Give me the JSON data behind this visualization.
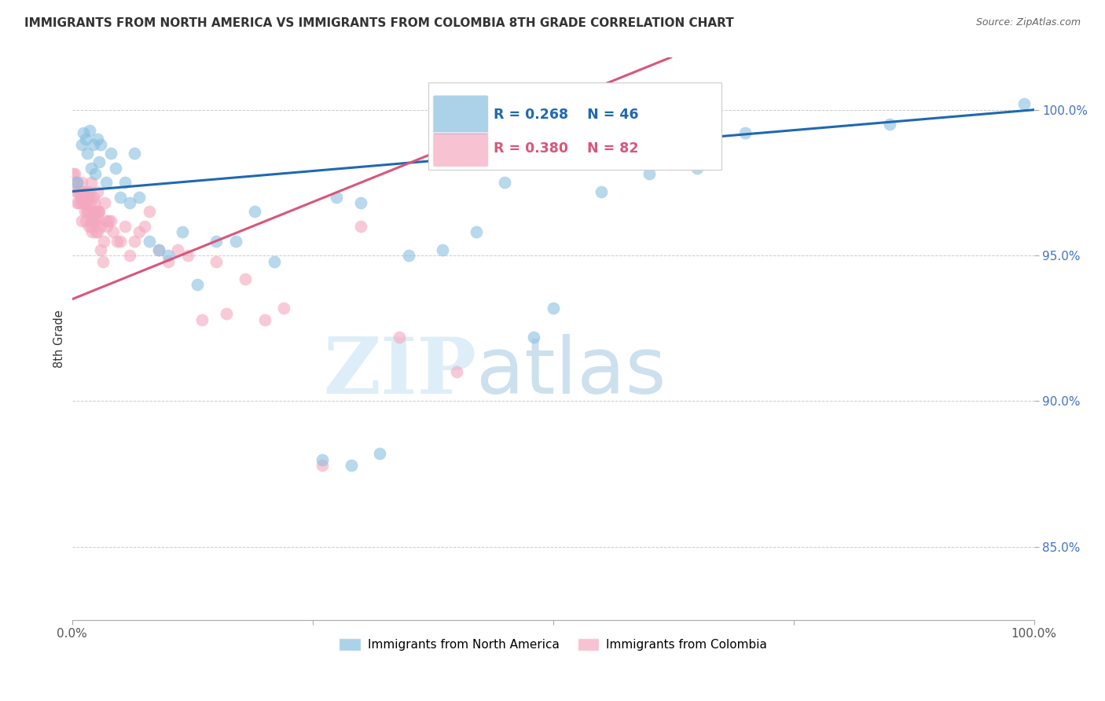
{
  "title": "IMMIGRANTS FROM NORTH AMERICA VS IMMIGRANTS FROM COLOMBIA 8TH GRADE CORRELATION CHART",
  "source": "Source: ZipAtlas.com",
  "ylabel": "8th Grade",
  "y_ticks": [
    100.0,
    95.0,
    90.0,
    85.0
  ],
  "y_tick_labels": [
    "100.0%",
    "95.0%",
    "90.0%",
    "85.0%"
  ],
  "x_range": [
    0.0,
    100.0
  ],
  "y_range": [
    82.5,
    101.8
  ],
  "legend_blue_label": "Immigrants from North America",
  "legend_pink_label": "Immigrants from Colombia",
  "legend_R_blue": "R = 0.268",
  "legend_N_blue": "N = 46",
  "legend_R_pink": "R = 0.380",
  "legend_N_pink": "N = 82",
  "blue_color": "#89bfe0",
  "pink_color": "#f4a8bf",
  "blue_line_color": "#2068b0",
  "pink_line_color": "#d9567b",
  "blue_trend_x": [
    0.0,
    100.0
  ],
  "blue_trend_y": [
    97.2,
    100.0
  ],
  "pink_trend_x": [
    0.0,
    30.0
  ],
  "pink_trend_y": [
    93.5,
    97.5
  ],
  "blue_x": [
    0.5,
    1.0,
    1.2,
    1.4,
    1.6,
    1.8,
    2.0,
    2.2,
    2.4,
    2.6,
    2.8,
    3.0,
    3.5,
    4.0,
    4.5,
    5.0,
    5.5,
    6.0,
    6.5,
    7.0,
    8.0,
    9.0,
    10.0,
    11.5,
    13.0,
    15.0,
    17.0,
    19.0,
    21.0,
    26.0,
    29.0,
    32.0,
    35.0,
    38.5,
    42.0,
    45.0,
    48.0,
    50.0,
    55.0,
    60.0,
    65.0,
    70.0,
    85.0,
    99.0,
    27.5,
    30.0
  ],
  "blue_y": [
    97.5,
    98.8,
    99.2,
    99.0,
    98.5,
    99.3,
    98.0,
    98.8,
    97.8,
    99.0,
    98.2,
    98.8,
    97.5,
    98.5,
    98.0,
    97.0,
    97.5,
    96.8,
    98.5,
    97.0,
    95.5,
    95.2,
    95.0,
    95.8,
    94.0,
    95.5,
    95.5,
    96.5,
    94.8,
    88.0,
    87.8,
    88.2,
    95.0,
    95.2,
    95.8,
    97.5,
    92.2,
    93.2,
    97.2,
    97.8,
    98.0,
    99.2,
    99.5,
    100.2,
    97.0,
    96.8
  ],
  "pink_x": [
    0.1,
    0.2,
    0.3,
    0.4,
    0.5,
    0.5,
    0.6,
    0.7,
    0.8,
    0.9,
    1.0,
    1.0,
    1.1,
    1.2,
    1.3,
    1.4,
    1.5,
    1.5,
    1.6,
    1.7,
    1.8,
    1.9,
    2.0,
    2.0,
    2.1,
    2.2,
    2.3,
    2.4,
    2.5,
    2.6,
    2.7,
    2.8,
    3.0,
    3.2,
    3.4,
    3.6,
    3.8,
    4.0,
    4.3,
    4.7,
    5.0,
    5.5,
    6.0,
    6.5,
    7.0,
    7.5,
    8.0,
    9.0,
    10.0,
    11.0,
    12.0,
    13.5,
    15.0,
    16.0,
    18.0,
    20.0,
    22.0,
    26.0,
    30.0,
    34.0,
    40.0,
    2.2,
    2.4,
    2.6,
    2.8,
    3.0,
    1.8,
    2.0,
    1.5,
    1.6,
    1.2,
    1.3,
    0.8,
    0.9,
    1.0,
    1.4,
    1.7,
    2.1,
    2.3,
    2.7,
    3.3,
    3.5
  ],
  "pink_y": [
    97.8,
    97.5,
    97.8,
    97.2,
    97.5,
    96.8,
    97.2,
    96.8,
    97.2,
    97.0,
    97.5,
    96.2,
    97.2,
    96.8,
    97.0,
    96.2,
    97.2,
    96.8,
    96.5,
    96.0,
    97.2,
    96.8,
    96.2,
    97.5,
    95.8,
    97.0,
    96.2,
    96.5,
    95.8,
    97.2,
    96.5,
    96.5,
    95.2,
    94.8,
    96.8,
    96.0,
    96.2,
    96.2,
    95.8,
    95.5,
    95.5,
    96.0,
    95.0,
    95.5,
    95.8,
    96.0,
    96.5,
    95.2,
    94.8,
    95.2,
    95.0,
    92.8,
    94.8,
    93.0,
    94.2,
    92.8,
    93.2,
    87.8,
    96.0,
    92.2,
    91.0,
    96.5,
    96.2,
    95.8,
    96.2,
    96.0,
    96.5,
    96.0,
    97.0,
    96.5,
    97.0,
    96.5,
    97.2,
    96.8,
    97.0,
    96.8,
    97.0,
    96.2,
    96.8,
    96.5,
    95.5,
    96.2
  ]
}
